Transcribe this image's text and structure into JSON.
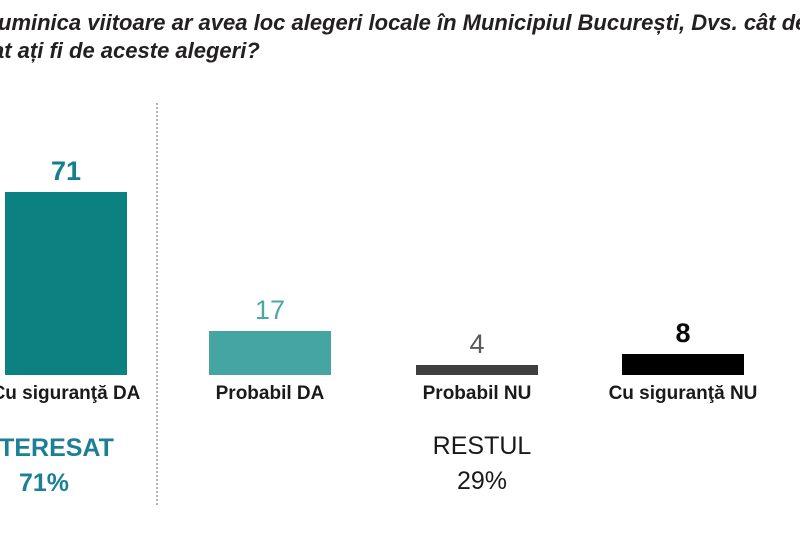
{
  "title": {
    "line1": "uminica viitoare ar avea loc alegeri locale în Municipiul București, Dvs. cât de",
    "line2": "at ați fi de aceste alegeri?"
  },
  "chart_data": {
    "type": "bar",
    "orientation": "vertical",
    "categories": [
      "Cu siguranţă DA",
      "Probabil DA",
      "Probabil NU",
      "Cu siguranţă NU"
    ],
    "values": [
      71,
      17,
      4,
      8
    ],
    "bar_colors": [
      "#0C8181",
      "#45A5A3",
      "#3F3F3F",
      "#000000"
    ],
    "value_label_colors": [
      "#13808E",
      "#4AA7A4",
      "#595959",
      "#0A0A0A"
    ],
    "value_label_bold": [
      true,
      false,
      false,
      true
    ],
    "ylim": [
      0,
      80
    ],
    "grid": false,
    "legend": false,
    "separator": "dotted vertical line between first bar and the other three",
    "annotations": [
      {
        "text": "INTERESAT",
        "value": "71%",
        "color": "#1B8096",
        "applies_to": [
          "Cu siguranţă DA"
        ]
      },
      {
        "text": "RESTUL",
        "value": "29%",
        "color": "#1A1A1A",
        "applies_to": [
          "Probabil DA",
          "Probabil NU",
          "Cu siguranţă NU"
        ]
      }
    ]
  }
}
